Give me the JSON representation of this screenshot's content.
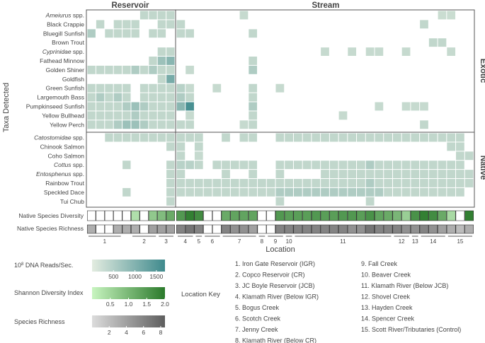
{
  "chart_data": {
    "type": "heatmap",
    "ylabel": "Taxa Detected",
    "xlabel": "Location",
    "panel_titles": [
      "Reservoir",
      "Stream"
    ],
    "group_labels": [
      "Exotic",
      "Native"
    ],
    "exotic_taxa": [
      {
        "label": "Ameiurus spp.",
        "italic_part": "Ameiurus",
        "rest": " spp."
      },
      {
        "label": "Black Crappie"
      },
      {
        "label": "Bluegill Sunfish"
      },
      {
        "label": "Brown Trout"
      },
      {
        "label": "Cyprinidae spp.",
        "italic_part": "Cyprinidae",
        "rest": " spp."
      },
      {
        "label": "Fathead Minnow"
      },
      {
        "label": "Golden Shiner"
      },
      {
        "label": "Goldfish"
      },
      {
        "label": "Green Sunfish"
      },
      {
        "label": "Largemouth Bass"
      },
      {
        "label": "Pumpkinseed Sunfish"
      },
      {
        "label": "Yellow Bullhead"
      },
      {
        "label": "Yellow Perch"
      }
    ],
    "native_taxa": [
      {
        "label": "Catostomidae spp.",
        "italic_part": "Catostomidae",
        "rest": " spp."
      },
      {
        "label": "Chinook Salmon"
      },
      {
        "label": "Coho Salmon"
      },
      {
        "label": "Cottus spp.",
        "italic_part": "Cottus",
        "rest": " spp."
      },
      {
        "label": "Entosphenus spp.",
        "italic_part": "Entosphenus",
        "rest": " spp."
      },
      {
        "label": "Rainbow Trout"
      },
      {
        "label": "Speckled Dace"
      },
      {
        "label": "Tui Chub"
      }
    ],
    "reservoir_columns": 10,
    "stream_columns": 33,
    "reads_matrix_note": "values are 10^8 DNA reads/sec; 0 = not detected",
    "exotic_reads": [
      [
        0,
        0,
        0,
        0,
        0,
        0,
        300,
        300,
        300,
        300,
        0,
        0,
        0,
        0,
        0,
        0,
        0,
        250,
        0,
        0,
        0,
        0,
        0,
        0,
        0,
        0,
        0,
        0,
        0,
        0,
        0,
        0,
        0,
        0,
        0,
        0,
        0,
        0,
        0,
        200,
        200,
        0,
        0
      ],
      [
        0,
        300,
        0,
        300,
        300,
        300,
        0,
        0,
        300,
        300,
        300,
        0,
        0,
        0,
        0,
        0,
        0,
        0,
        0,
        0,
        0,
        0,
        0,
        0,
        0,
        0,
        0,
        0,
        0,
        0,
        0,
        0,
        0,
        0,
        0,
        0,
        0,
        300,
        0,
        0,
        0,
        0,
        0
      ],
      [
        500,
        0,
        300,
        300,
        300,
        300,
        0,
        300,
        300,
        0,
        300,
        300,
        0,
        0,
        0,
        0,
        0,
        0,
        300,
        0,
        0,
        0,
        0,
        0,
        0,
        0,
        0,
        0,
        0,
        0,
        0,
        0,
        0,
        0,
        0,
        0,
        0,
        0,
        0,
        0,
        0,
        0,
        0
      ],
      [
        0,
        0,
        0,
        0,
        0,
        0,
        0,
        0,
        0,
        0,
        0,
        0,
        0,
        0,
        0,
        0,
        0,
        0,
        0,
        0,
        0,
        0,
        0,
        0,
        0,
        0,
        0,
        0,
        0,
        0,
        0,
        0,
        0,
        0,
        0,
        0,
        0,
        0,
        300,
        300,
        0,
        0,
        0
      ],
      [
        0,
        0,
        0,
        0,
        0,
        0,
        0,
        0,
        300,
        300,
        0,
        0,
        0,
        0,
        0,
        0,
        0,
        0,
        0,
        0,
        0,
        0,
        0,
        0,
        0,
        0,
        250,
        0,
        0,
        250,
        0,
        250,
        250,
        0,
        0,
        250,
        0,
        0,
        0,
        0,
        250,
        0,
        0
      ],
      [
        0,
        0,
        0,
        0,
        0,
        0,
        0,
        300,
        700,
        900,
        0,
        0,
        0,
        0,
        0,
        0,
        0,
        0,
        300,
        0,
        0,
        0,
        0,
        0,
        0,
        0,
        0,
        0,
        0,
        0,
        0,
        0,
        0,
        0,
        0,
        0,
        0,
        0,
        0,
        0,
        0,
        0,
        0
      ],
      [
        300,
        300,
        300,
        300,
        300,
        500,
        300,
        500,
        300,
        300,
        0,
        250,
        0,
        0,
        0,
        0,
        0,
        0,
        500,
        0,
        0,
        0,
        0,
        0,
        0,
        0,
        0,
        0,
        0,
        0,
        0,
        0,
        0,
        0,
        0,
        0,
        0,
        0,
        0,
        0,
        0,
        0,
        0
      ],
      [
        0,
        0,
        0,
        0,
        0,
        0,
        0,
        0,
        300,
        1100,
        0,
        0,
        0,
        0,
        0,
        0,
        0,
        0,
        0,
        0,
        0,
        0,
        0,
        0,
        0,
        0,
        0,
        0,
        0,
        0,
        0,
        0,
        0,
        0,
        0,
        0,
        0,
        0,
        0,
        0,
        0,
        0,
        0
      ],
      [
        300,
        300,
        300,
        300,
        300,
        0,
        300,
        300,
        300,
        300,
        400,
        250,
        0,
        0,
        250,
        0,
        0,
        0,
        300,
        0,
        0,
        250,
        0,
        0,
        0,
        0,
        0,
        0,
        0,
        0,
        0,
        0,
        0,
        0,
        0,
        0,
        0,
        0,
        0,
        0,
        0,
        0,
        0
      ],
      [
        300,
        500,
        300,
        500,
        300,
        0,
        300,
        300,
        300,
        300,
        500,
        300,
        0,
        0,
        0,
        0,
        0,
        0,
        300,
        0,
        0,
        0,
        0,
        0,
        0,
        0,
        0,
        0,
        0,
        0,
        0,
        0,
        0,
        0,
        0,
        0,
        0,
        0,
        0,
        0,
        0,
        0,
        0
      ],
      [
        300,
        300,
        300,
        300,
        500,
        700,
        500,
        300,
        300,
        300,
        900,
        1600,
        0,
        0,
        0,
        0,
        0,
        0,
        500,
        0,
        0,
        0,
        0,
        0,
        0,
        0,
        0,
        0,
        0,
        0,
        0,
        0,
        250,
        0,
        0,
        250,
        250,
        250,
        0,
        0,
        0,
        0,
        0
      ],
      [
        300,
        300,
        300,
        300,
        300,
        500,
        300,
        300,
        300,
        300,
        0,
        250,
        0,
        0,
        0,
        0,
        0,
        0,
        300,
        0,
        0,
        0,
        0,
        0,
        0,
        0,
        0,
        0,
        250,
        0,
        0,
        0,
        0,
        0,
        0,
        0,
        0,
        0,
        0,
        0,
        0,
        0,
        0
      ],
      [
        300,
        300,
        300,
        500,
        700,
        700,
        500,
        300,
        300,
        300,
        300,
        300,
        0,
        0,
        0,
        0,
        0,
        250,
        300,
        0,
        0,
        0,
        0,
        0,
        0,
        0,
        0,
        0,
        0,
        0,
        0,
        0,
        0,
        0,
        0,
        0,
        0,
        300,
        0,
        0,
        0,
        0,
        0
      ]
    ],
    "native_reads": [
      [
        0,
        0,
        300,
        300,
        300,
        300,
        300,
        300,
        300,
        300,
        300,
        300,
        300,
        0,
        0,
        300,
        0,
        300,
        300,
        0,
        0,
        300,
        300,
        300,
        300,
        300,
        300,
        300,
        300,
        300,
        300,
        300,
        300,
        300,
        300,
        300,
        300,
        300,
        300,
        300,
        300,
        300,
        0
      ],
      [
        0,
        0,
        0,
        0,
        0,
        0,
        0,
        0,
        0,
        300,
        300,
        0,
        300,
        0,
        0,
        0,
        0,
        0,
        0,
        0,
        0,
        0,
        0,
        0,
        0,
        0,
        0,
        0,
        0,
        0,
        0,
        0,
        0,
        0,
        0,
        0,
        0,
        0,
        0,
        0,
        300,
        300,
        0
      ],
      [
        0,
        0,
        0,
        0,
        0,
        0,
        0,
        0,
        0,
        0,
        300,
        0,
        250,
        0,
        0,
        0,
        0,
        0,
        0,
        0,
        0,
        0,
        0,
        0,
        0,
        0,
        0,
        0,
        0,
        0,
        0,
        0,
        0,
        0,
        0,
        0,
        0,
        0,
        0,
        0,
        0,
        300,
        300
      ],
      [
        0,
        0,
        0,
        0,
        300,
        0,
        0,
        0,
        0,
        300,
        400,
        400,
        300,
        0,
        300,
        300,
        300,
        300,
        300,
        0,
        0,
        300,
        300,
        300,
        300,
        300,
        300,
        300,
        300,
        300,
        300,
        500,
        300,
        300,
        300,
        300,
        300,
        300,
        300,
        300,
        300,
        300,
        0
      ],
      [
        0,
        0,
        0,
        0,
        0,
        0,
        0,
        0,
        0,
        300,
        300,
        0,
        0,
        0,
        0,
        300,
        0,
        0,
        300,
        0,
        0,
        300,
        0,
        0,
        0,
        0,
        300,
        300,
        300,
        300,
        300,
        300,
        300,
        300,
        300,
        300,
        300,
        300,
        300,
        300,
        300,
        300,
        300
      ],
      [
        0,
        0,
        0,
        0,
        0,
        0,
        0,
        0,
        0,
        300,
        300,
        300,
        300,
        300,
        300,
        300,
        300,
        300,
        300,
        300,
        300,
        300,
        300,
        300,
        300,
        300,
        300,
        300,
        300,
        300,
        300,
        500,
        300,
        300,
        300,
        300,
        300,
        300,
        300,
        300,
        300,
        300,
        300
      ],
      [
        0,
        0,
        0,
        0,
        300,
        0,
        0,
        0,
        0,
        300,
        300,
        300,
        300,
        300,
        300,
        300,
        300,
        300,
        300,
        300,
        300,
        500,
        500,
        500,
        500,
        500,
        500,
        500,
        500,
        500,
        500,
        500,
        500,
        300,
        300,
        300,
        300,
        300,
        300,
        300,
        300,
        300,
        0
      ],
      [
        0,
        0,
        0,
        0,
        0,
        0,
        0,
        0,
        0,
        300,
        0,
        0,
        0,
        0,
        0,
        0,
        0,
        0,
        0,
        0,
        0,
        300,
        0,
        0,
        0,
        0,
        0,
        0,
        0,
        0,
        0,
        300,
        0,
        0,
        0,
        0,
        0,
        0,
        0,
        0,
        0,
        0,
        0
      ]
    ],
    "shannon_diversity": [
      0,
      0,
      0,
      0,
      0,
      0.3,
      0,
      0.7,
      0.9,
      1.2,
      1.5,
      1.9,
      1.7,
      0,
      0,
      1.2,
      1.3,
      1.3,
      1.3,
      0,
      0,
      1.5,
      1.4,
      1.4,
      1.4,
      1.5,
      1.4,
      1.4,
      1.5,
      1.5,
      1.4,
      1.6,
      1.3,
      1.2,
      1.0,
      0.6,
      1.6,
      1.9,
      1.7,
      1.2,
      0.4,
      0,
      1.9
    ],
    "species_richness": [
      3,
      0,
      0,
      3,
      3,
      3,
      0,
      4,
      4,
      4,
      6,
      7,
      6,
      0,
      0,
      6,
      5,
      5,
      4,
      0,
      0,
      6,
      6,
      6,
      6,
      6,
      6,
      6,
      6,
      5,
      5,
      7,
      6,
      6,
      6,
      5,
      5,
      6,
      5,
      4,
      3,
      2,
      3
    ],
    "location_bracket_labels": [
      "1",
      "2",
      "3",
      "4",
      "5",
      "6",
      "7",
      "8",
      "9",
      "10",
      "11",
      "12",
      "13",
      "14",
      "15"
    ],
    "legend_reads": {
      "title": "10⁸ DNA Reads/Sec.",
      "title_base": "10",
      "title_sup": "8",
      "title_rest": " DNA Reads/Sec.",
      "ticks": [
        "500",
        "1000",
        "1500"
      ],
      "range": [
        0,
        1700
      ]
    },
    "legend_shannon": {
      "title": "Shannon Diversity Index",
      "ticks": [
        "0.5",
        "1.0",
        "1.5",
        "2.0"
      ],
      "range": [
        0,
        2.0
      ]
    },
    "legend_richness": {
      "title": "Species Richness",
      "ticks": [
        "2",
        "4",
        "6",
        "8"
      ],
      "range": [
        0,
        8.5
      ]
    },
    "bar_labels": {
      "diversity": "Native Species Diversity",
      "richness": "Native Species Richness"
    },
    "location_key_title": "Location Key",
    "location_key": [
      "1.   Iron Gate Reservoir (IGR)",
      "2.   Copco Reservoir (CR)",
      "3.   JC Boyle Reservoir (JCB)",
      "4.   Klamath River (Below IGR)",
      "5.   Bogus Creek",
      "6.   Scotch Creek",
      "7.   Jenny Creek",
      "8.   Klamath River (Below CR)",
      "9.   Fall Creek",
      "10. Beaver Creek",
      "11. Klamath River (Below JCB)",
      "12. Shovel Creek",
      "13. Hayden Creek",
      "14. Spencer Creek",
      "15. Scott River/Tributaries (Control)"
    ],
    "colors": {
      "reads_low": "#dde8da",
      "reads_high": "#3f8a8d",
      "shannon_low": "#c8f2c2",
      "shannon_high": "#2b7a2b",
      "richness_low": "#d8d8d8",
      "richness_high": "#606060"
    }
  }
}
